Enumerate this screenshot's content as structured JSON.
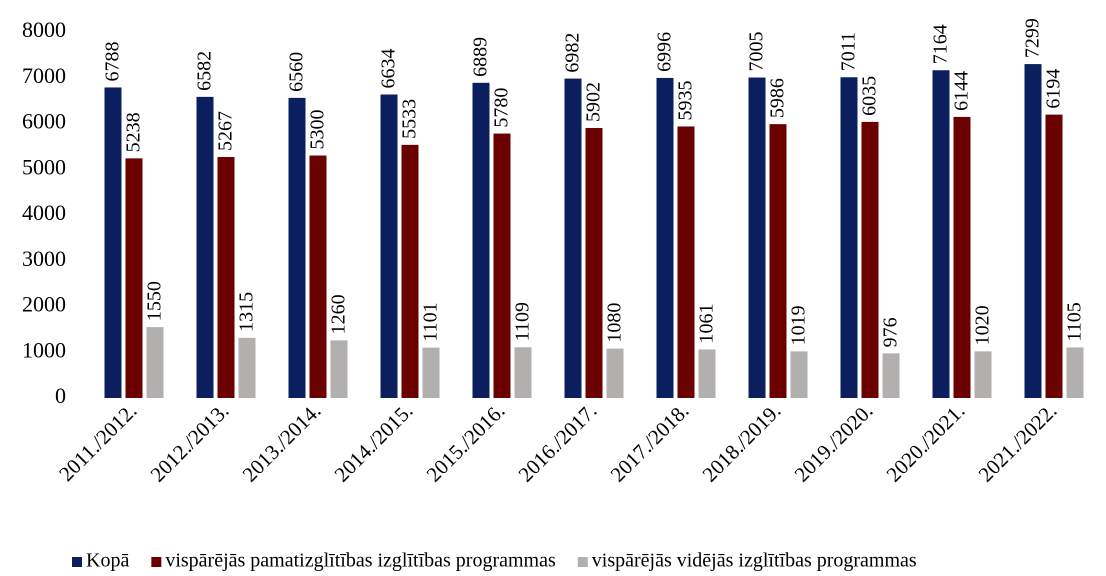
{
  "chart_data": {
    "type": "bar",
    "categories": [
      "2011./2012.",
      "2012./2013.",
      "2013./2014.",
      "2014./2015.",
      "2015./2016.",
      "2016./2017.",
      "2017./2018.",
      "2018./2019.",
      "2019./2020.",
      "2020./2021.",
      "2021./2022."
    ],
    "series": [
      {
        "name": "Kopā",
        "color": "#0b1f5e",
        "values": [
          6788,
          6582,
          6560,
          6634,
          6889,
          6982,
          6996,
          7005,
          7011,
          7164,
          7299
        ]
      },
      {
        "name": "vispārējās pamatizglītības izglītības programmas",
        "color": "#6b0000",
        "values": [
          5238,
          5267,
          5300,
          5533,
          5780,
          5902,
          5935,
          5986,
          6035,
          6144,
          6194
        ]
      },
      {
        "name": "vispārējās vidējās izglītības programmas",
        "color": "#b2afaf",
        "values": [
          1550,
          1315,
          1260,
          1101,
          1109,
          1080,
          1061,
          1019,
          976,
          1020,
          1105
        ]
      }
    ],
    "ylim": [
      0,
      8000
    ],
    "yticks": [
      0,
      1000,
      2000,
      3000,
      4000,
      5000,
      6000,
      7000,
      8000
    ],
    "grid": false,
    "legend": "bottom"
  }
}
